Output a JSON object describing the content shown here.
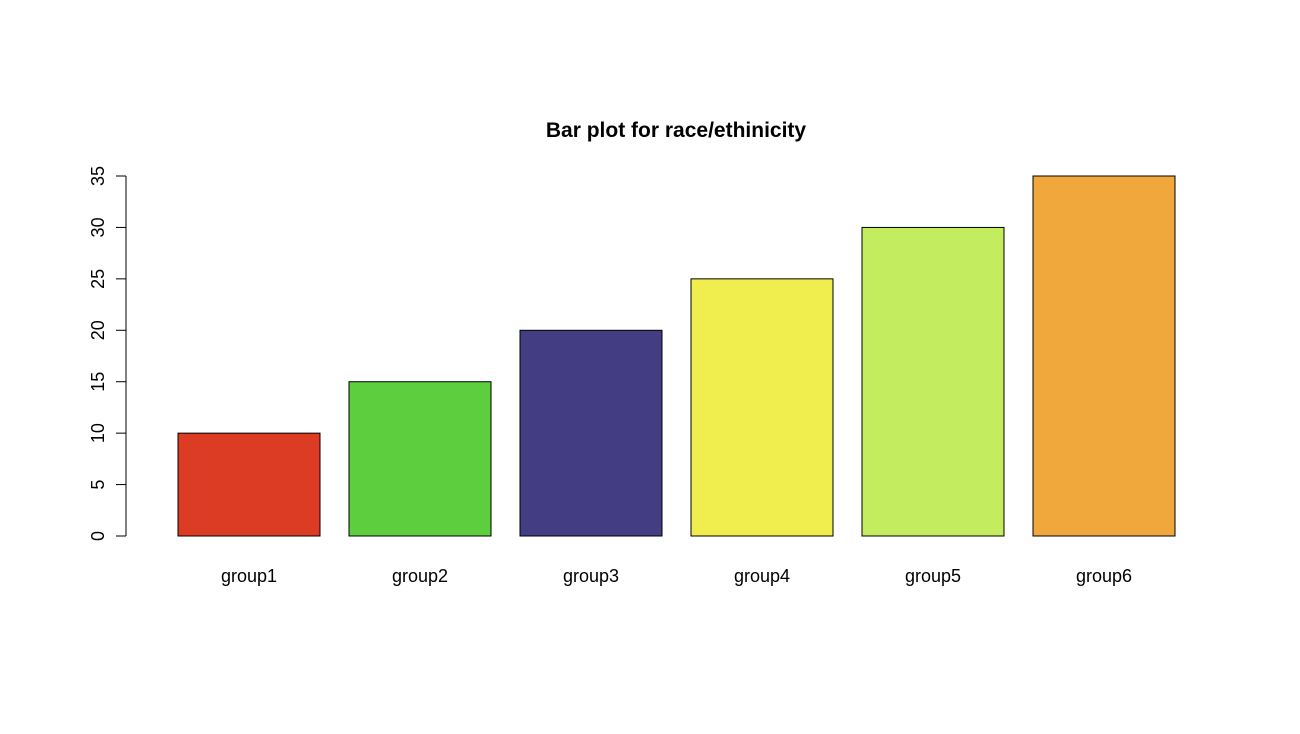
{
  "chart_data": {
    "type": "bar",
    "title": "Bar plot for race/ethinicity",
    "xlabel": "",
    "ylabel": "",
    "categories": [
      "group1",
      "group2",
      "group3",
      "group4",
      "group5",
      "group6"
    ],
    "values": [
      10,
      15,
      20,
      25,
      30,
      35
    ],
    "colors": [
      "#dc3b24",
      "#5dce3d",
      "#433d84",
      "#efee4e",
      "#c3ec5f",
      "#f0a83c"
    ],
    "ylim": [
      0,
      35
    ],
    "yticks": [
      0,
      5,
      10,
      15,
      20,
      25,
      30,
      35
    ],
    "grid": false,
    "legend": "none"
  }
}
